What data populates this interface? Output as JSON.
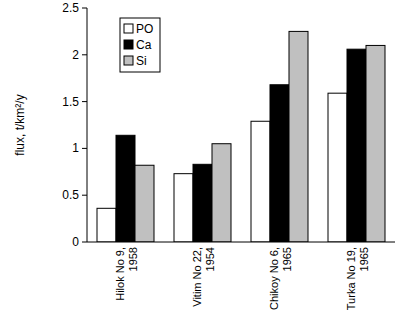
{
  "chart_data": {
    "type": "bar",
    "y_label": "flux, t/km²/y",
    "categories": [
      "Hilok No 9, 1958",
      "Vitim No 22, 1954",
      "Chikoy No 6, 1965",
      "Turka No 19, 1965"
    ],
    "series": [
      {
        "name": "PO",
        "color": "#ffffff",
        "values": [
          0.36,
          0.73,
          1.29,
          1.59
        ]
      },
      {
        "name": "Ca",
        "color": "#000000",
        "values": [
          1.14,
          0.83,
          1.68,
          2.06
        ]
      },
      {
        "name": "Si",
        "color": "#c0c0c0",
        "values": [
          0.82,
          1.05,
          2.25,
          2.1
        ]
      }
    ],
    "ylim": [
      0,
      2.5
    ],
    "yticks": [
      0,
      {
        "value": 0.5,
        "label": "0.5"
      },
      1,
      {
        "value": 1.5,
        "label": "1.5"
      },
      2,
      {
        "value": 2.5,
        "label": "2.5"
      }
    ],
    "grid": false,
    "legend": "top-left"
  }
}
